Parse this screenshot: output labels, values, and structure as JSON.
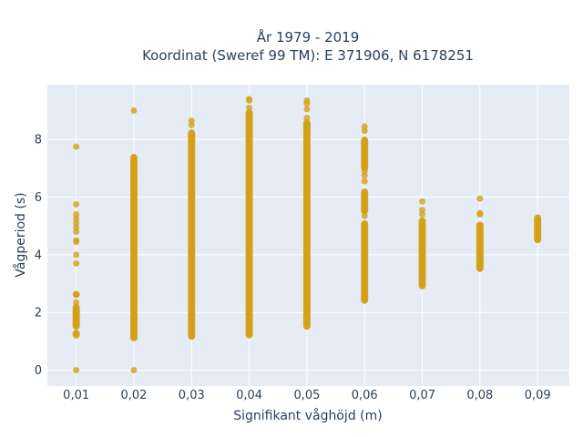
{
  "chart_data": {
    "type": "scatter",
    "title": [
      "År 1979 - 2019",
      "Koordinat (Sweref 99 TM): E 371906, N 6178251"
    ],
    "xlabel": "Signifikant våghöjd (m)",
    "ylabel": "Vågperiod (s)",
    "xlim": [
      0.005,
      0.0955
    ],
    "ylim": [
      -0.55,
      9.9
    ],
    "x_ticks": [
      0.01,
      0.02,
      0.03,
      0.04,
      0.05,
      0.06,
      0.07,
      0.08,
      0.09
    ],
    "x_tick_labels": [
      "0,01",
      "0,02",
      "0,03",
      "0,04",
      "0,05",
      "0,06",
      "0,07",
      "0,08",
      "0,09"
    ],
    "y_ticks": [
      0,
      2,
      4,
      6,
      8
    ],
    "y_tick_labels": [
      "0",
      "2",
      "4",
      "6",
      "8"
    ],
    "grid": true,
    "legend": "none",
    "marker_color": "#d4a017",
    "plot_background": "#e5ecf6",
    "columns": [
      {
        "x": 0.01,
        "ranges": [
          [
            1.2,
            1.3
          ],
          [
            1.5,
            2.2
          ],
          [
            2.6,
            2.65
          ]
        ],
        "points": [
          0,
          2.35,
          3.7,
          4.0,
          4.45,
          4.5,
          4.8,
          4.95,
          5.1,
          5.25,
          5.4,
          5.75,
          7.75
        ]
      },
      {
        "x": 0.02,
        "ranges": [
          [
            1.1,
            7.4
          ]
        ],
        "points": [
          0,
          9.0
        ]
      },
      {
        "x": 0.03,
        "ranges": [
          [
            1.15,
            8.25
          ]
        ],
        "points": [
          8.5,
          8.65
        ]
      },
      {
        "x": 0.04,
        "ranges": [
          [
            1.2,
            8.95
          ]
        ],
        "points": [
          9.1,
          9.35,
          9.4
        ]
      },
      {
        "x": 0.05,
        "ranges": [
          [
            1.5,
            8.6
          ]
        ],
        "points": [
          8.75,
          9.05,
          9.25,
          9.35
        ]
      },
      {
        "x": 0.06,
        "ranges": [
          [
            2.4,
            5.1
          ],
          [
            5.5,
            6.2
          ],
          [
            7.0,
            8.0
          ]
        ],
        "points": [
          5.35,
          6.55,
          6.75,
          6.9,
          8.3,
          8.45
        ]
      },
      {
        "x": 0.07,
        "ranges": [
          [
            2.9,
            5.2
          ]
        ],
        "points": [
          5.4,
          5.55,
          5.85
        ]
      },
      {
        "x": 0.08,
        "ranges": [
          [
            3.5,
            5.05
          ]
        ],
        "points": [
          5.4,
          5.45,
          5.95
        ]
      },
      {
        "x": 0.09,
        "ranges": [
          [
            4.5,
            5.3
          ]
        ],
        "points": []
      }
    ]
  }
}
